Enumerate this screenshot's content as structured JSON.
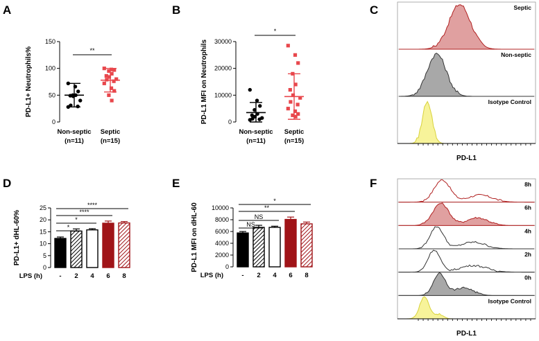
{
  "colors": {
    "black": "#000000",
    "red": "#e8474c",
    "darkred": "#a01418",
    "septic_fill": "#e0a0a0",
    "septic_line": "#b02020",
    "grey_fill": "#a8a8a8",
    "yellow_fill": "#f7f39a",
    "yellow_line": "#d8d23a"
  },
  "panels": {
    "A": "A",
    "B": "B",
    "C": "C",
    "D": "D",
    "E": "E",
    "F": "F"
  },
  "chart_data": [
    {
      "id": "A",
      "type": "scatter",
      "ylabel": "PD-L1+ Neutrophils%",
      "ylim": [
        0,
        150
      ],
      "yticks": [
        "0",
        "50",
        "100",
        "150"
      ],
      "categories": [
        {
          "name": "Non-septic",
          "n": "(n=11)"
        },
        {
          "name": "Septic",
          "n": "(n=15)"
        }
      ],
      "series": [
        {
          "name": "Non-septic",
          "mean": 50,
          "sd": 22,
          "values": [
            72,
            66,
            57,
            50,
            50,
            49,
            48,
            40,
            31,
            29,
            28
          ]
        },
        {
          "name": "Septic",
          "mean": 78,
          "sd": 22,
          "values": [
            100,
            98,
            97,
            95,
            90,
            86,
            84,
            80,
            79,
            76,
            72,
            63,
            58,
            50,
            40
          ]
        }
      ],
      "significance": "**"
    },
    {
      "id": "B",
      "type": "scatter",
      "ylabel": "PD-L1 MFI on Neutrophils",
      "ylim": [
        0,
        30000
      ],
      "yticks": [
        "0",
        "10000",
        "20000",
        "30000"
      ],
      "categories": [
        {
          "name": "Non-septic",
          "n": "(n=11)"
        },
        {
          "name": "Septic",
          "n": "(n=15)"
        }
      ],
      "series": [
        {
          "name": "Non-septic",
          "mean": 3500,
          "sd": 3800,
          "values": [
            12000,
            8000,
            6000,
            4500,
            3000,
            2500,
            2000,
            1500,
            1200,
            1000,
            800
          ]
        },
        {
          "name": "Septic",
          "mean": 9500,
          "sd": 8500,
          "values": [
            28500,
            25000,
            22000,
            18000,
            14000,
            12000,
            10000,
            9000,
            7500,
            6500,
            5000,
            4000,
            3000,
            2500,
            2000
          ]
        }
      ],
      "significance": "*"
    },
    {
      "id": "C",
      "type": "histogram",
      "xlabel": "PD-L1",
      "tracks": [
        "Septic",
        "Non-septic",
        "Isotype Control"
      ]
    },
    {
      "id": "D",
      "type": "bar",
      "ylabel": "PD-L1+ dHL-60%",
      "ylim": [
        0,
        25
      ],
      "yticks": [
        "0",
        "5",
        "10",
        "15",
        "20",
        "25"
      ],
      "xlabel": "LPS (h)",
      "categories": [
        "-",
        "2",
        "4",
        "6",
        "8"
      ],
      "values": [
        12.2,
        15.3,
        15.8,
        18.6,
        18.7
      ],
      "errors": [
        0.6,
        0.9,
        0.5,
        0.9,
        0.6
      ],
      "styles": [
        "black",
        "hatch-black",
        "white",
        "darkred",
        "hatch-red"
      ],
      "comparisons": [
        {
          "to": 4,
          "label": "****"
        },
        {
          "to": 3,
          "label": "****"
        },
        {
          "to": 2,
          "label": "*"
        },
        {
          "to": 1,
          "label": "*"
        }
      ]
    },
    {
      "id": "E",
      "type": "bar",
      "ylabel": "PD-L1 MFI on dHL-60",
      "ylim": [
        0,
        10000
      ],
      "yticks": [
        "0",
        "2000",
        "4000",
        "6000",
        "8000",
        "10000"
      ],
      "xlabel": "LPS (h)",
      "categories": [
        "-",
        "2",
        "4",
        "6",
        "8"
      ],
      "values": [
        5750,
        6700,
        6700,
        8050,
        7300
      ],
      "errors": [
        250,
        350,
        200,
        400,
        300
      ],
      "styles": [
        "black",
        "hatch-black",
        "white",
        "darkred",
        "hatch-red"
      ],
      "comparisons": [
        {
          "to": 4,
          "label": "*"
        },
        {
          "to": 3,
          "label": "**"
        },
        {
          "to": 2,
          "label": "NS"
        },
        {
          "to": 1,
          "label": "NS"
        }
      ]
    },
    {
      "id": "F",
      "type": "histogram",
      "xlabel": "PD-L1",
      "tracks": [
        "8h",
        "6h",
        "4h",
        "2h",
        "0h",
        "Isotype Control"
      ]
    }
  ]
}
